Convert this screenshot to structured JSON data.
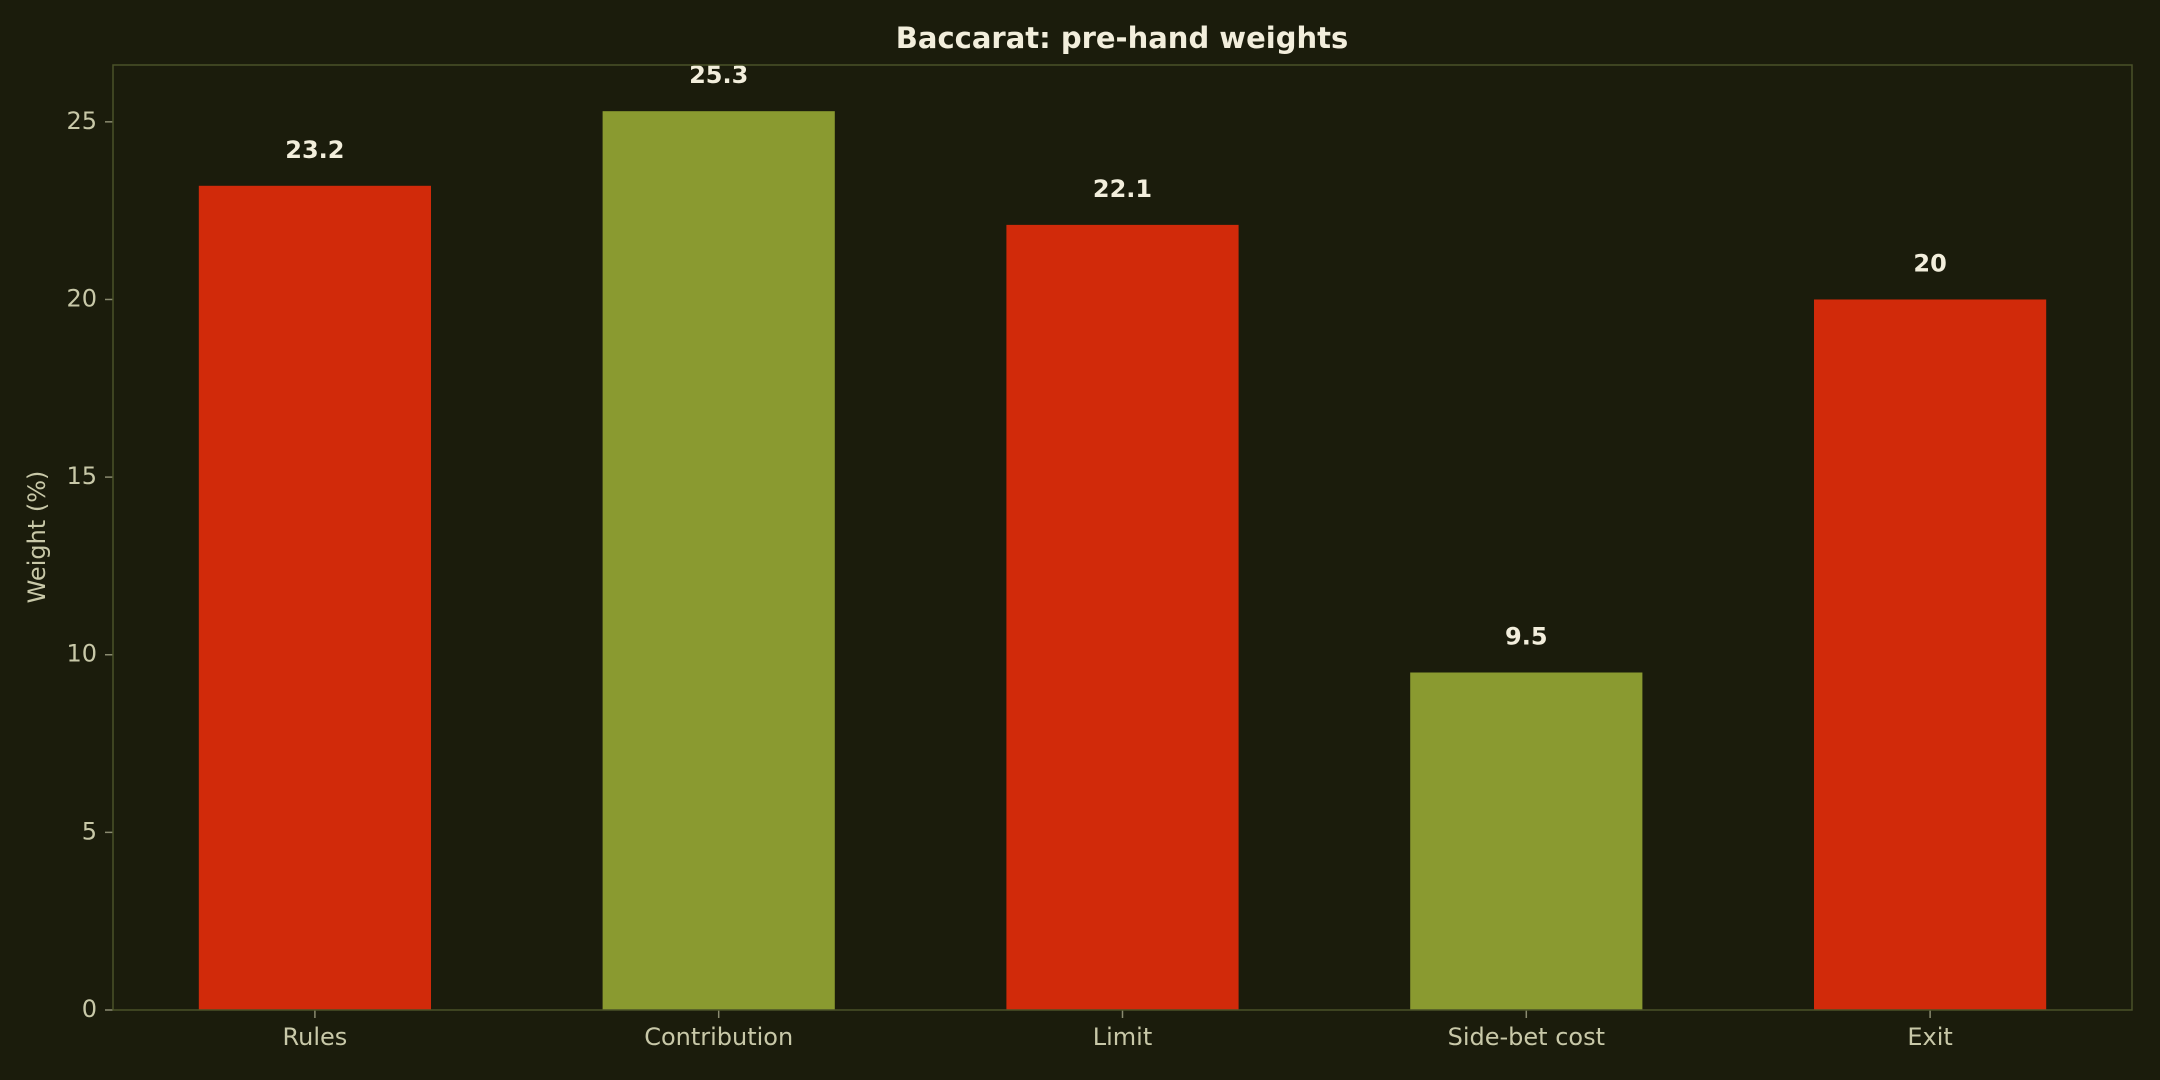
{
  "chart_data": {
    "type": "bar",
    "title": "Baccarat: pre-hand weights",
    "y_label": "Weight (%)",
    "categories": [
      "Rules",
      "Contribution",
      "Limit",
      "Side-bet cost",
      "Exit"
    ],
    "values": [
      23.2,
      25.3,
      22.1,
      9.5,
      20
    ],
    "colors": [
      "#d12a0a",
      "#8a9a30",
      "#d12a0a",
      "#8a9a30",
      "#d12a0a"
    ],
    "ylim": [
      0,
      26.6
    ],
    "yticks": [
      0,
      5,
      10,
      15,
      20,
      25
    ]
  }
}
